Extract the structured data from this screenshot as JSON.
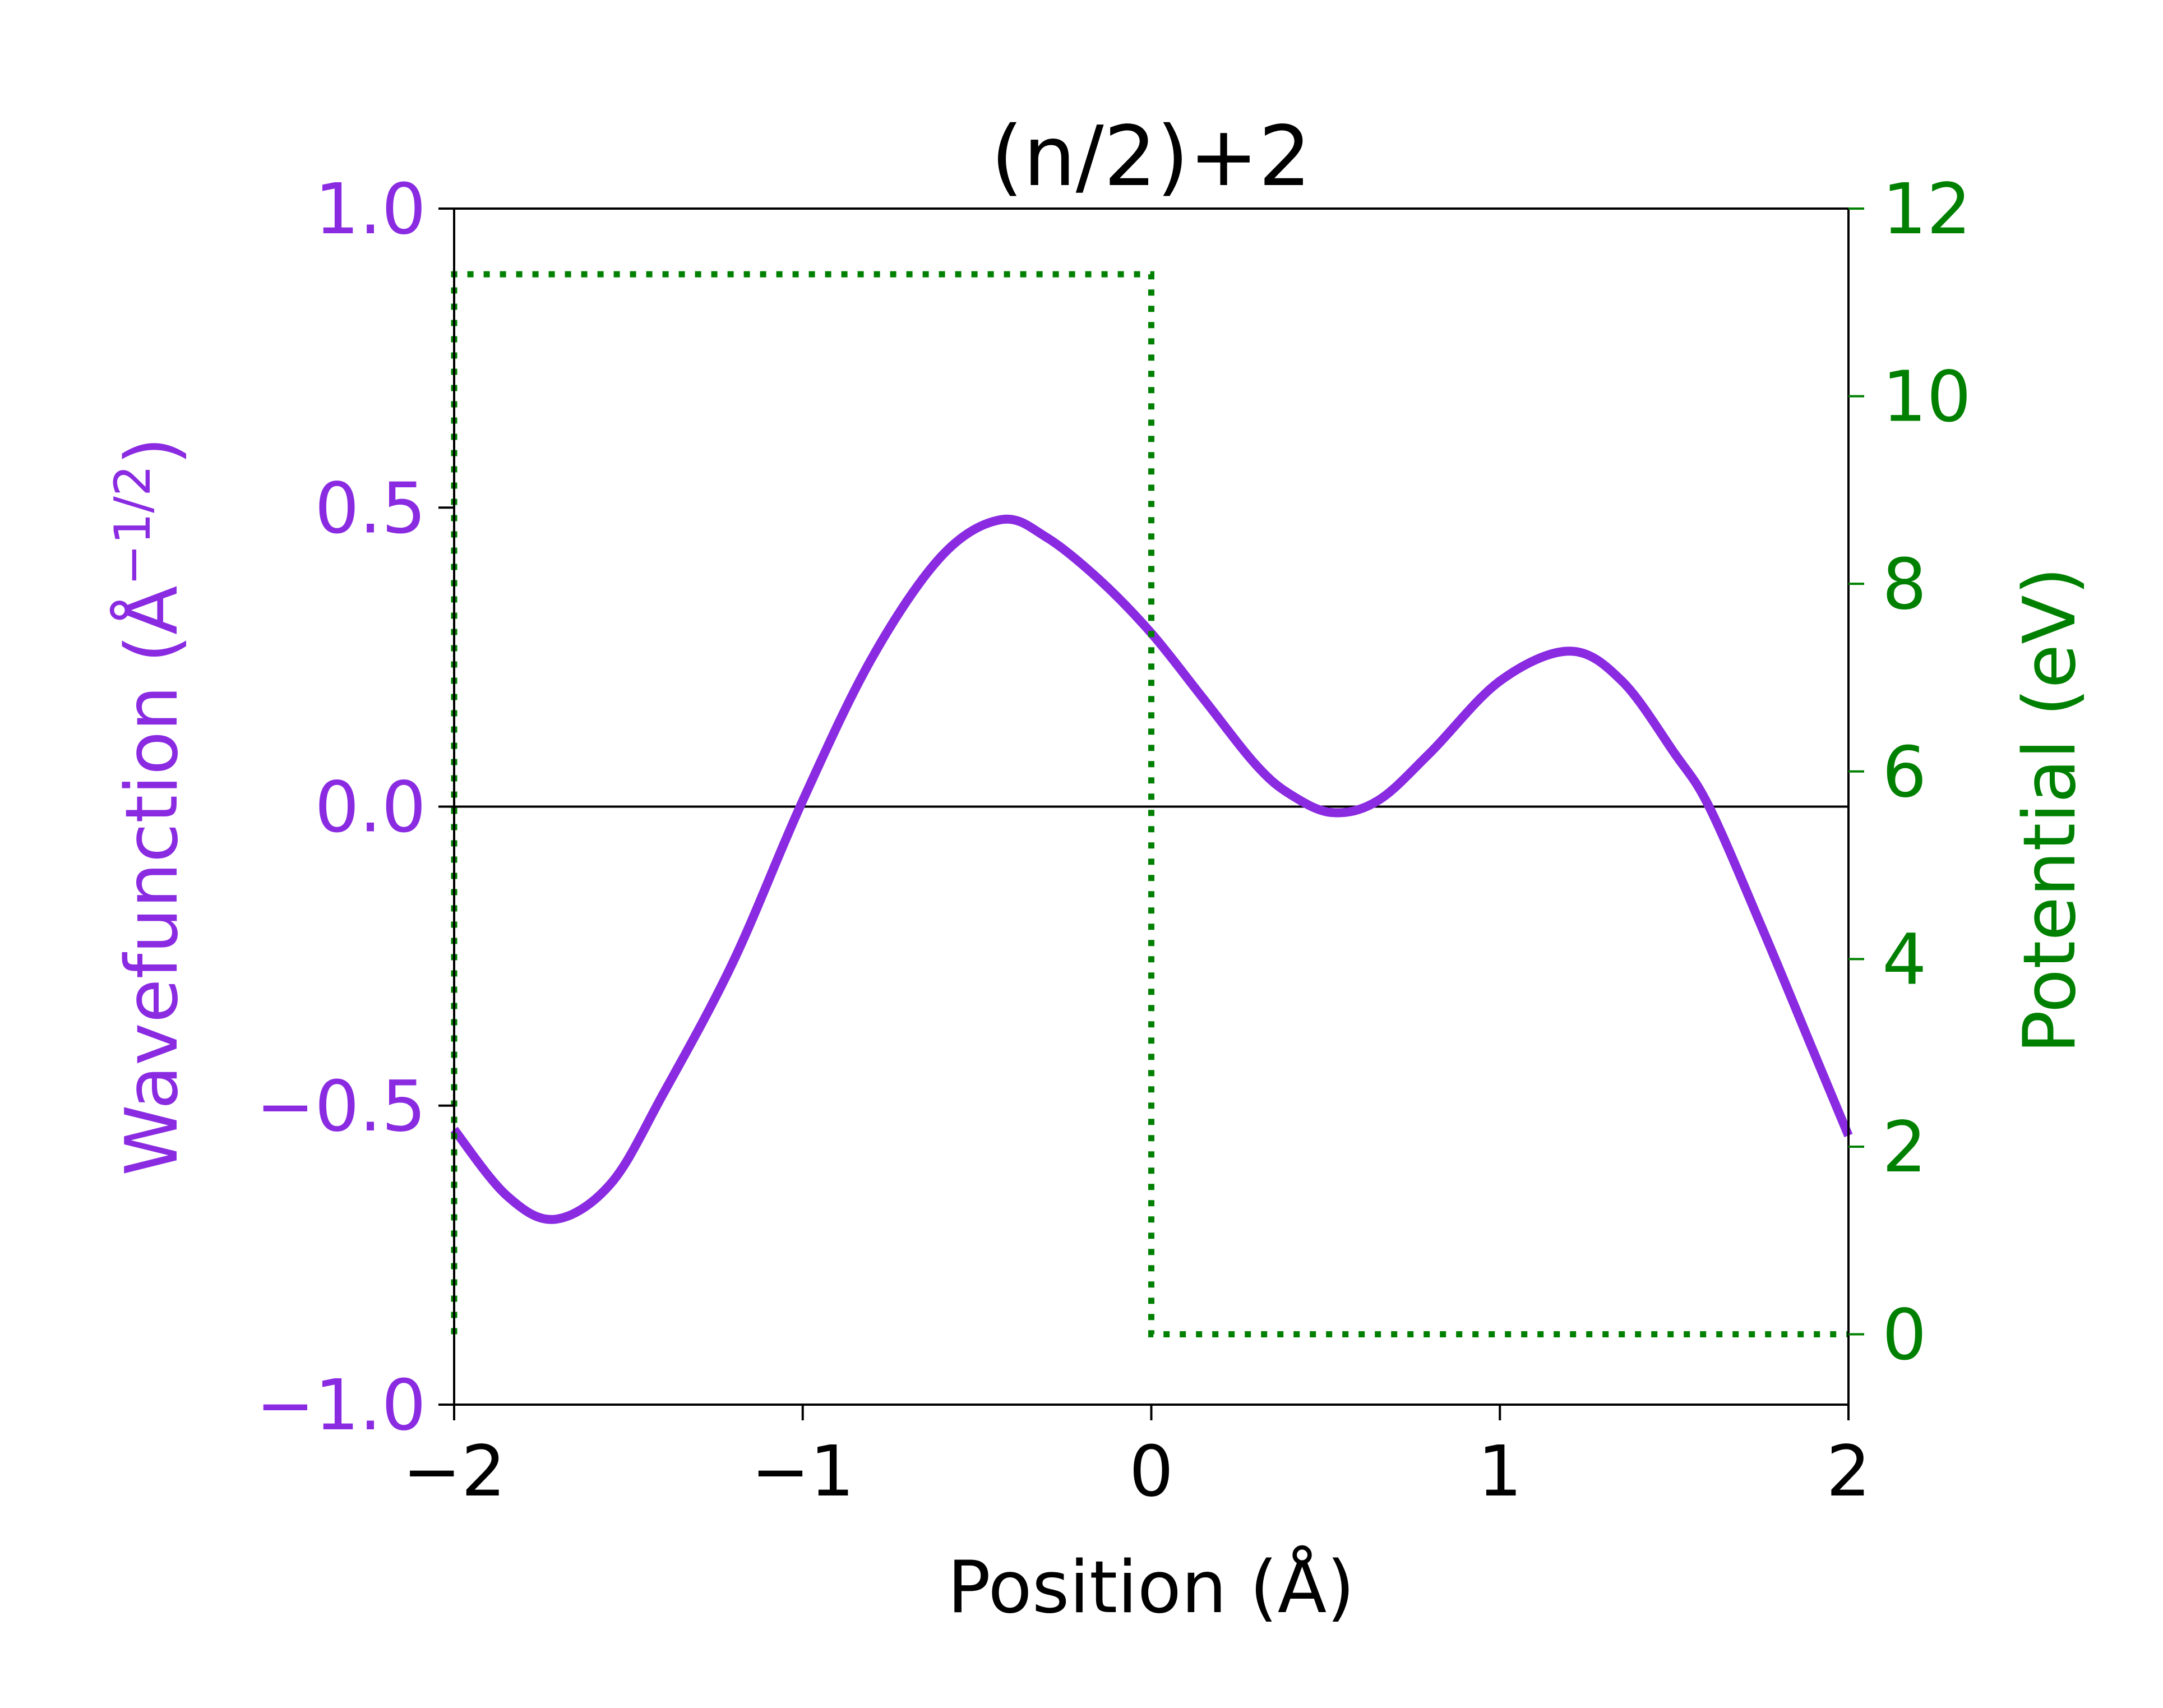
{
  "chart_data": {
    "type": "line",
    "title": "(n/2)+2",
    "xlabel": "Position (Å)",
    "ylabel_left": "Wavefunction (Å",
    "ylabel_left_sup": "−1/2",
    "ylabel_left_close": ")",
    "ylabel_right": "Potential (eV)",
    "xlim": [
      -2,
      2
    ],
    "ylim_left": [
      -1.0,
      1.0
    ],
    "ylim_right": [
      -0.75,
      12
    ],
    "x_ticks": [
      -2,
      -1,
      0,
      1,
      2
    ],
    "x_tick_labels": [
      "−2",
      "−1",
      "0",
      "1",
      "2"
    ],
    "left_ticks": [
      -1.0,
      -0.5,
      0.0,
      0.5,
      1.0
    ],
    "left_tick_labels": [
      "−1.0",
      "−0.5",
      "0.0",
      "0.5",
      "1.0"
    ],
    "right_ticks": [
      0,
      2,
      4,
      6,
      8,
      10,
      12
    ],
    "right_tick_labels": [
      "0",
      "2",
      "4",
      "6",
      "8",
      "10",
      "12"
    ],
    "grid": false,
    "colors": {
      "wavefunction": "#8a2be2",
      "potential": "#008000",
      "zero_line": "#000000",
      "axes": "#000000"
    },
    "series": [
      {
        "axis": "left",
        "style": "solid",
        "x": [
          -2.0,
          -1.85,
          -1.71,
          -1.55,
          -1.4,
          -1.2,
          -1.0,
          -0.8,
          -0.6,
          -0.43,
          -0.3,
          -0.15,
          0.0,
          0.15,
          0.3,
          0.4,
          0.52,
          0.65,
          0.8,
          1.0,
          1.2,
          1.35,
          1.5,
          1.6,
          1.75,
          1.9,
          2.0
        ],
        "y": [
          -0.54,
          -0.65,
          -0.69,
          -0.63,
          -0.48,
          -0.26,
          0.01,
          0.25,
          0.42,
          0.48,
          0.45,
          0.38,
          0.29,
          0.18,
          0.07,
          0.02,
          -0.01,
          0.01,
          0.09,
          0.21,
          0.26,
          0.21,
          0.09,
          0.0,
          -0.2,
          -0.41,
          -0.55
        ]
      },
      {
        "axis": "right",
        "style": "dotted",
        "x": [
          -2.0,
          -2.0,
          0.0,
          0.0,
          2.0
        ],
        "y": [
          0,
          11.3,
          11.3,
          0,
          0
        ]
      }
    ]
  }
}
